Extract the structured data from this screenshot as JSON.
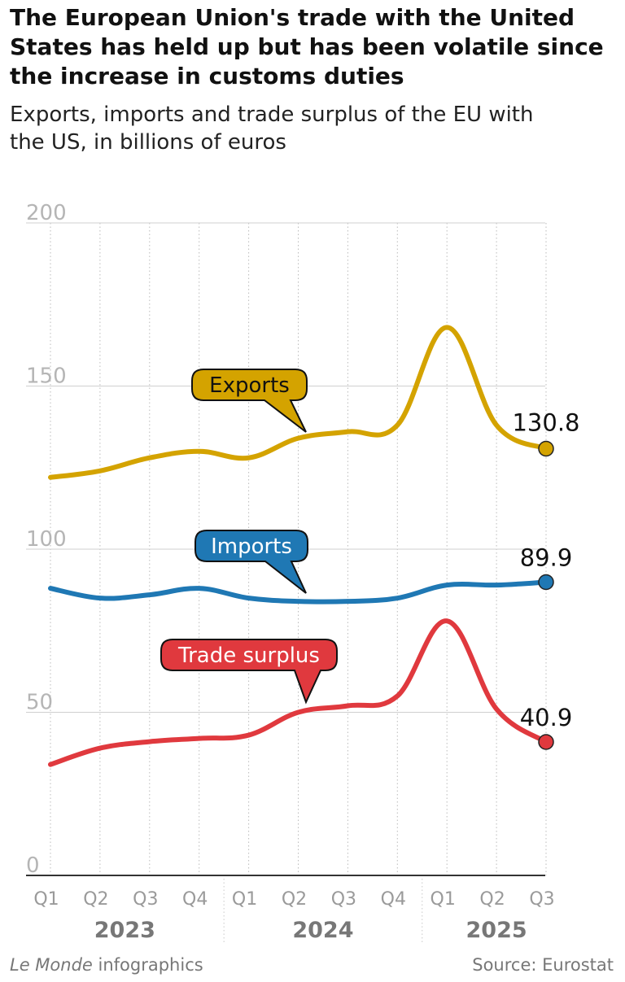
{
  "chart_data": {
    "type": "line",
    "title": "The European Union's trade with the United States has held up but has been volatile since the increase in customs duties",
    "subtitle": "Exports, imports and trade surplus of the EU with the US, in billions of euros",
    "ylim": [
      0,
      200
    ],
    "yticks": [
      "0",
      "50",
      "100",
      "150",
      "200"
    ],
    "x": [
      "Q1",
      "Q2",
      "Q3",
      "Q4",
      "Q1",
      "Q2",
      "Q3",
      "Q4",
      "Q1",
      "Q2",
      "Q3"
    ],
    "years": [
      {
        "label": "2023",
        "quarters": 4
      },
      {
        "label": "2024",
        "quarters": 4
      },
      {
        "label": "2025",
        "quarters": 3
      }
    ],
    "series": [
      {
        "name": "Exports",
        "color": "#d4a300",
        "values": [
          122,
          124,
          128,
          130,
          128,
          134,
          136,
          138,
          168,
          138,
          130.8
        ],
        "end_label": "130.8"
      },
      {
        "name": "Imports",
        "color": "#1f78b4",
        "values": [
          88,
          85,
          86,
          88,
          85,
          84,
          84,
          85,
          89,
          89,
          89.9
        ],
        "end_label": "89.9"
      },
      {
        "name": "Trade surplus",
        "color": "#e0393e",
        "values": [
          34,
          39,
          41,
          42,
          43,
          50,
          52,
          55,
          78,
          51,
          40.9
        ],
        "end_label": "40.9"
      }
    ]
  },
  "footer": {
    "credit_brand": "Le Monde",
    "credit_text": " infographics",
    "source": "Source: Eurostat"
  }
}
